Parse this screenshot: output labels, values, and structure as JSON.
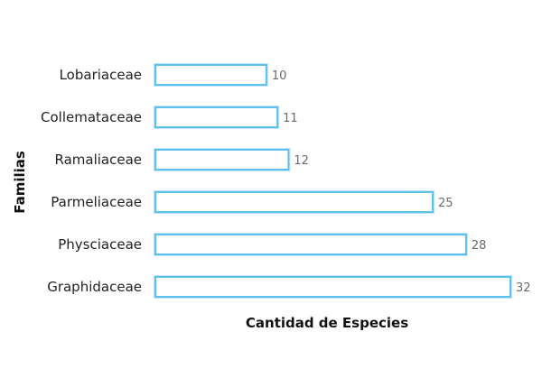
{
  "chart_data": {
    "type": "bar",
    "orientation": "horizontal",
    "categories": [
      "Lobariaceae",
      "Collemataceae",
      "Ramaliaceae",
      "Parmeliaceae",
      "Physciaceae",
      "Graphidaceae"
    ],
    "values": [
      10,
      11,
      12,
      25,
      28,
      32
    ],
    "xlabel": "Cantidad de Especies",
    "ylabel": "Familias",
    "xlim": [
      0,
      32
    ],
    "grid": false,
    "bar_color": "#5ec0ec",
    "bar_fill": "#ffffff"
  }
}
